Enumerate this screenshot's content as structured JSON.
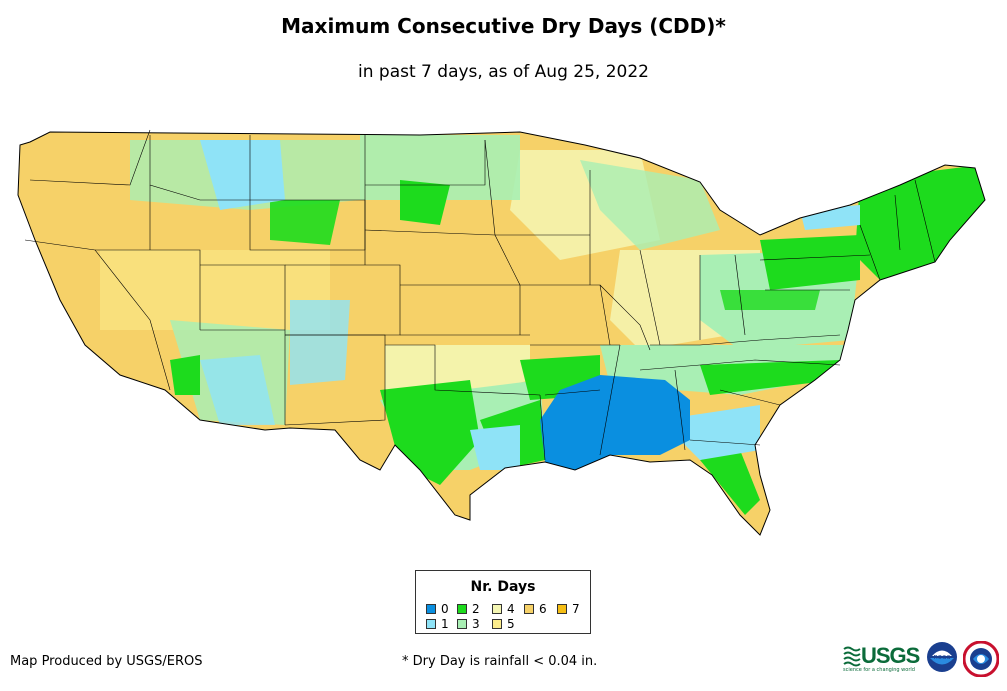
{
  "title": "Maximum Consecutive Dry Days (CDD)*",
  "subtitle": "in past 7 days, as of Aug 25, 2022",
  "legend": {
    "title": "Nr. Days",
    "items": [
      {
        "label": "0",
        "color": "#0a8fe0"
      },
      {
        "label": "1",
        "color": "#8fe3f7"
      },
      {
        "label": "2",
        "color": "#1ddb1d"
      },
      {
        "label": "3",
        "color": "#a9efb4"
      },
      {
        "label": "4",
        "color": "#f4f6b3"
      },
      {
        "label": "5",
        "color": "#fbec8c"
      },
      {
        "label": "6",
        "color": "#f6d168"
      },
      {
        "label": "7",
        "color": "#f5be14"
      }
    ]
  },
  "footer": {
    "producer": "Map Produced by USGS/EROS",
    "note": "* Dry Day is rainfall < 0.04 in."
  },
  "logos": {
    "usgs": {
      "text": "USGS",
      "tagline": "science for a changing world",
      "color": "#0b6b3a",
      "icon": "usgs-logo"
    },
    "noaa": {
      "text": "noaa",
      "icon": "noaa-logo"
    },
    "nws": {
      "icon": "nws-logo"
    }
  },
  "map_fill": {
    "dominant": "#f6d168",
    "outline": "#000000"
  }
}
